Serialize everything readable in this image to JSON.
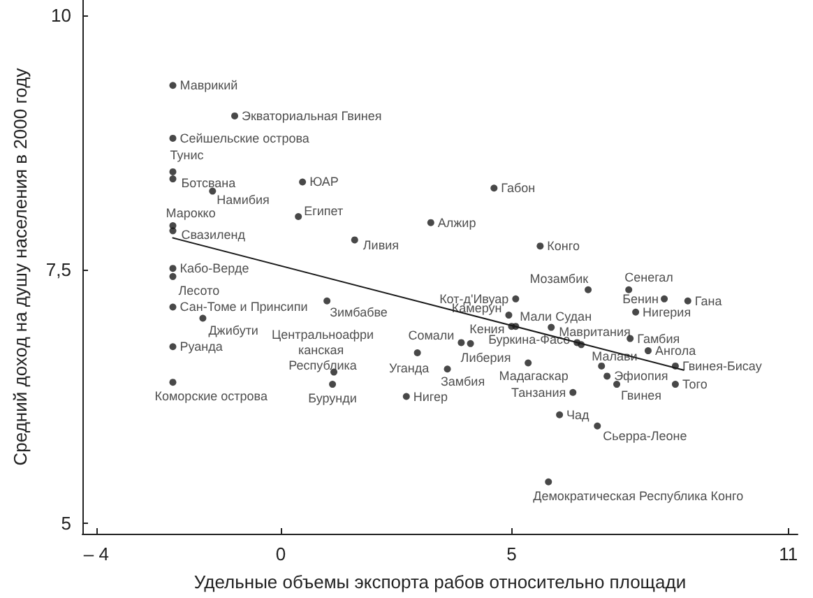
{
  "chart_data": {
    "type": "scatter",
    "xlabel": "Удельные объемы экспорта рабов относительно площади",
    "ylabel": "Средний доход на душу населения в 2000 году",
    "xlim": [
      -4.3,
      11.2
    ],
    "xticks": [
      {
        "value": -4,
        "label": "– 4"
      },
      0,
      5,
      11
    ],
    "ylim": [
      4.9,
      10.15
    ],
    "yticks": [
      5,
      {
        "value": 7.5,
        "label": "7,5"
      },
      10
    ],
    "grid": false,
    "marker": "circle",
    "series": [
      {
        "color": "#1a1a1a",
        "x": [
          -2.34,
          -1.0,
          -2.34,
          -2.34,
          -2.34,
          -1.48,
          0.47,
          0.38,
          -2.34,
          -2.34,
          1.6,
          3.25,
          4.62,
          5.62,
          -2.34,
          -2.34,
          -2.34,
          1.0,
          -1.69,
          -2.34,
          1.15,
          1.12,
          -2.34,
          2.96,
          2.72,
          3.91,
          4.11,
          4.94,
          5.0,
          5.09,
          5.86,
          6.42,
          6.51,
          5.09,
          6.66,
          7.54,
          8.31,
          8.82,
          7.69,
          5.36,
          3.61,
          7.57,
          7.96,
          8.55,
          6.95,
          7.07,
          7.28,
          8.55,
          6.33,
          6.04,
          6.86,
          5.8
        ],
        "values": [
          9.31,
          9.01,
          8.79,
          8.46,
          8.39,
          8.27,
          8.36,
          8.02,
          7.93,
          7.88,
          7.79,
          7.96,
          8.3,
          7.73,
          7.51,
          7.43,
          7.13,
          7.19,
          7.02,
          6.74,
          6.49,
          6.37,
          6.39,
          6.68,
          6.25,
          6.78,
          6.77,
          7.05,
          6.94,
          6.94,
          6.93,
          6.78,
          6.76,
          7.21,
          7.3,
          7.3,
          7.21,
          7.19,
          7.08,
          6.58,
          6.52,
          6.82,
          6.7,
          6.55,
          6.55,
          6.45,
          6.37,
          6.37,
          6.29,
          6.07,
          5.96,
          5.41
        ],
        "value_labels": [
          "Маврикий",
          "Экваториальная Гвинея",
          "Сейшельские острова",
          "Тунис",
          "Ботсвана",
          "Намибия",
          "ЮАР",
          "Египет",
          "Марокко",
          "Свазиленд",
          "Ливия",
          "Алжир",
          "Габон",
          "Конго",
          "Кабо-Верде",
          "Лесото",
          "Сан-Томе и Принсипи",
          "Зимбабве",
          "Джибути",
          "Руанда",
          "Центральноафриканская Республика",
          "Бурунди",
          "Коморские острова",
          "Уганда",
          "Нигер",
          "Сомали",
          "Либерия",
          "Камерун",
          "Кения",
          "Мали",
          "Судан",
          "Буркина-Фасо",
          "Мавритания",
          "Кот-д'Ивуар",
          "Мозамбик",
          "Сенегал",
          "Бенин",
          "Гана",
          "Нигерия",
          "Мадагаскар",
          "Замбия",
          "Гамбия",
          "Ангола",
          "Гвинея-Бисау",
          "Малави",
          "Эфиопия",
          "Гвинея",
          "Того",
          "Танзания",
          "Чад",
          "Сьерра-Леоне",
          "Демократическая Республика Конго"
        ]
      },
      {
        "type": "line",
        "color": "#1a1a1a",
        "line_style": "solid",
        "marker": "none",
        "x": [
          -2.34,
          8.73
        ],
        "values": [
          7.81,
          6.51
        ]
      }
    ]
  }
}
